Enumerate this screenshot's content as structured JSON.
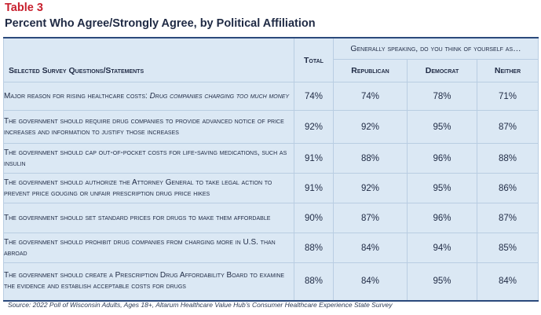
{
  "header": {
    "table_number": "Table 3",
    "title": "Percent Who Agree/Strongly Agree, by Political Affiliation"
  },
  "table": {
    "question_header": "Selected Survey Questions/Statements",
    "group_header": "Generally speaking, do you think of yourself as…",
    "columns": [
      "Total",
      "Republican",
      "Democrat",
      "Neither"
    ],
    "rows": [
      {
        "prefix": "Major reason for rising healthcare costs: ",
        "italic": "Drug companies charging too much money",
        "total": "74%",
        "republican": "74%",
        "democrat": "78%",
        "neither": "71%"
      },
      {
        "text": "The government should require drug companies to provide advanced notice of price increases and information to justify those increases",
        "total": "92%",
        "republican": "92%",
        "democrat": "95%",
        "neither": "87%"
      },
      {
        "text": "The government should cap out-of-pocket costs for life-saving medications, such as insulin",
        "total": "91%",
        "republican": "88%",
        "democrat": "96%",
        "neither": "88%"
      },
      {
        "text": "The government should authorize the Attorney General to take legal action to prevent price gouging or unfair prescription drug price hikes",
        "total": "91%",
        "republican": "92%",
        "democrat": "95%",
        "neither": "86%"
      },
      {
        "text": "The government should set standard prices for drugs to make them affordable",
        "total": "90%",
        "republican": "87%",
        "democrat": "96%",
        "neither": "87%"
      },
      {
        "text": "The government should prohibit drug companies from charging more in U.S. than abroad",
        "total": "88%",
        "republican": "84%",
        "democrat": "94%",
        "neither": "85%"
      },
      {
        "text": "The government should create a Prescription Drug Affordability Board to examine the evidence and establish acceptable costs for drugs",
        "total": "88%",
        "republican": "84%",
        "democrat": "95%",
        "neither": "84%"
      }
    ]
  },
  "footer": {
    "source": "Source: 2022 Poll of Wisconsin Adults, Ages 18+, Altarum Healthcare Value Hub’s Consumer Healthcare Experience State Survey"
  }
}
